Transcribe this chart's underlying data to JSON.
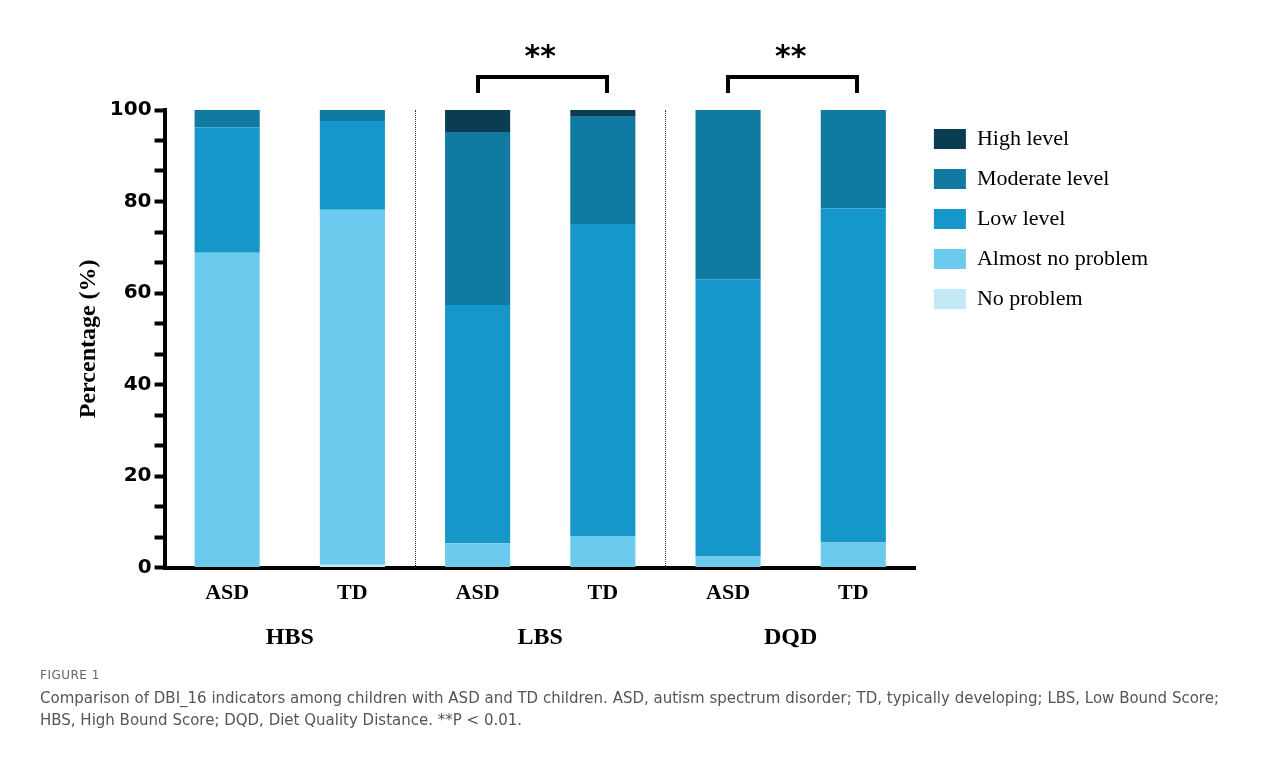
{
  "chart_data": {
    "type": "bar",
    "stacked": true,
    "ylabel": "Percentage (%)",
    "categories": [
      "ASD",
      "TD",
      "ASD",
      "TD",
      "ASD",
      "TD"
    ],
    "series": [
      {
        "name": "No problem",
        "color": "#c3e9f7",
        "values": [
          0,
          0.6,
          0,
          0,
          0,
          0
        ]
      },
      {
        "name": "Almost no problem",
        "color": "#6bcaed",
        "values": [
          68.8,
          77.6,
          5.3,
          6.9,
          2.4,
          5.5
        ]
      },
      {
        "name": "Low level",
        "color": "#1597c9",
        "values": [
          27.4,
          19.4,
          52.1,
          68.2,
          60.6,
          73.0
        ]
      },
      {
        "name": "Moderate level",
        "color": "#117aa3",
        "values": [
          3.8,
          2.4,
          37.8,
          23.4,
          37.0,
          21.5
        ]
      },
      {
        "name": "High level",
        "color": "#0b3d52",
        "values": [
          0,
          0,
          4.8,
          1.5,
          0,
          0
        ]
      }
    ],
    "ylim": [
      0,
      100
    ],
    "yticks": [
      0,
      {
        "value": 6.67,
        "label": null
      },
      {
        "value": 13.33,
        "label": null
      },
      20,
      {
        "value": 26.67,
        "label": null
      },
      {
        "value": 33.33,
        "label": null
      },
      40,
      {
        "value": 46.67,
        "label": null
      },
      {
        "value": 53.33,
        "label": null
      },
      60,
      {
        "value": 66.67,
        "label": null
      },
      {
        "value": 73.33,
        "label": null
      },
      80,
      {
        "value": 86.67,
        "label": null
      },
      {
        "value": 93.33,
        "label": null
      },
      100
    ],
    "legend": "right",
    "annotations": [
      "HBS",
      "LBS",
      "DQD",
      "**",
      "**",
      "FIGURE 1",
      "Comparison of DBI_16 indicators among children with ASD and TD children. ASD, autism spectrum disorder; TD, typically developing; LBS, Low Bound Score; HBS, High Bound Score; DQD, Diet Quality Distance. **P < 0.01."
    ]
  }
}
